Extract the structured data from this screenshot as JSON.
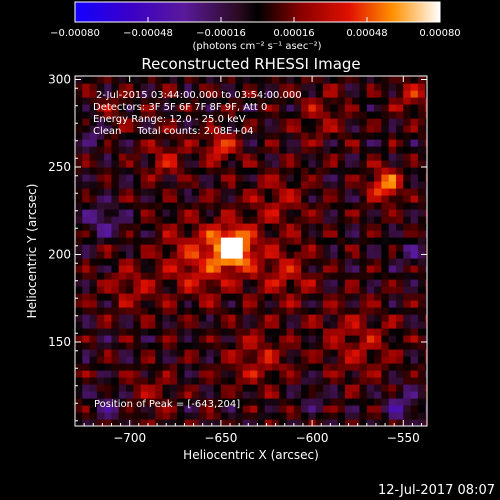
{
  "chart_data": {
    "type": "heatmap",
    "title": "Reconstructed RHESSI Image",
    "xlabel": "Heliocentric X (arcsec)",
    "ylabel": "Heliocentric Y (arcsec)",
    "xlim": [
      -730,
      -537
    ],
    "ylim": [
      102,
      302
    ],
    "x_ticks": [
      {
        "value": -700,
        "label": "−700"
      },
      {
        "value": -650,
        "label": "−650"
      },
      {
        "value": -600,
        "label": "−600"
      },
      {
        "value": -550,
        "label": "−550"
      }
    ],
    "y_ticks": [
      {
        "value": 150,
        "label": "150"
      },
      {
        "value": 200,
        "label": "200"
      },
      {
        "value": 250,
        "label": "250"
      },
      {
        "value": 300,
        "label": "300"
      }
    ],
    "colorbar": {
      "range": [
        -0.0008,
        0.0008
      ],
      "ticks": [
        {
          "value": -0.0008,
          "label": "−0.00080"
        },
        {
          "value": -0.00048,
          "label": "−0.00048"
        },
        {
          "value": -0.00016,
          "label": "−0.00016"
        },
        {
          "value": 0.00016,
          "label": "0.00016"
        },
        {
          "value": 0.00048,
          "label": "0.00048"
        },
        {
          "value": 0.0008,
          "label": "0.00080"
        }
      ],
      "units_label": "(photons cm⁻² s⁻¹ asec⁻²)"
    },
    "annotations": [
      "2-Jul-2015 03:44:00.000 to 03:54:00.000",
      "Detectors: 3F 5F 6F 7F 8F 9F, Att 0",
      "Energy Range: 12.0 - 25.0 keV",
      "Clean     Total counts: 2.08E+04"
    ],
    "peak_label": "Position of Peak = [-643,204]",
    "peak": {
      "x": -643,
      "y": 204
    },
    "blobs": [
      {
        "x": -643,
        "y": 204,
        "r": 10,
        "v": 0.0008
      },
      {
        "x": -660,
        "y": 198,
        "r": 22,
        "v": 0.00035
      },
      {
        "x": -615,
        "y": 190,
        "r": 16,
        "v": 0.00028
      },
      {
        "x": -620,
        "y": 230,
        "r": 18,
        "v": 0.0002
      },
      {
        "x": -650,
        "y": 262,
        "r": 9,
        "v": 0.0004
      },
      {
        "x": -560,
        "y": 240,
        "r": 9,
        "v": 0.00055
      },
      {
        "x": -680,
        "y": 255,
        "r": 11,
        "v": 0.00025
      },
      {
        "x": -700,
        "y": 180,
        "r": 14,
        "v": 0.0002
      },
      {
        "x": -575,
        "y": 150,
        "r": 20,
        "v": 0.00022
      },
      {
        "x": -630,
        "y": 140,
        "r": 16,
        "v": 0.00024
      },
      {
        "x": -690,
        "y": 120,
        "r": 14,
        "v": 0.00016
      },
      {
        "x": -545,
        "y": 290,
        "r": 10,
        "v": 0.00025
      },
      {
        "x": -595,
        "y": 280,
        "r": 14,
        "v": 0.00018
      },
      {
        "x": -710,
        "y": 280,
        "r": 12,
        "v": 0.00012
      },
      {
        "x": -715,
        "y": 220,
        "r": 10,
        "v": -0.0003
      },
      {
        "x": -720,
        "y": 270,
        "r": 8,
        "v": -0.00025
      },
      {
        "x": -550,
        "y": 115,
        "r": 10,
        "v": -0.00028
      },
      {
        "x": -710,
        "y": 115,
        "r": 10,
        "v": -0.00022
      },
      {
        "x": -545,
        "y": 200,
        "r": 9,
        "v": -0.0002
      },
      {
        "x": -600,
        "y": 120,
        "r": 8,
        "v": -0.00018
      }
    ]
  },
  "footer": {
    "timestamp": "12-Jul-2017 08:07"
  }
}
